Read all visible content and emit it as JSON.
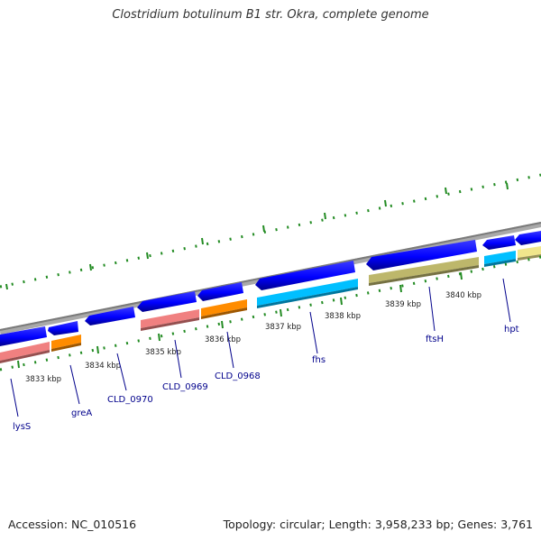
{
  "title": "Clostridium botulinum B1 str. Okra, complete genome",
  "footer": {
    "accession": "Accession: NC_010516",
    "stats": "Topology: circular; Length: 3,958,233 bp; Genes: 3,761"
  },
  "scale": {
    "labels": [
      "3833 kbp",
      "3834 kbp",
      "3835 kbp",
      "3836 kbp",
      "3837 kbp",
      "3838 kbp",
      "3839 kbp",
      "3840 kbp"
    ]
  },
  "genes": [
    {
      "name": "lysS",
      "color": "#f08080"
    },
    {
      "name": "greA",
      "color": "#ff8c00"
    },
    {
      "name": "CLD_0970",
      "color": "#0000ff"
    },
    {
      "name": "CLD_0969",
      "color": "#f08080"
    },
    {
      "name": "CLD_0968",
      "color": "#ff8c00"
    },
    {
      "name": "fhs",
      "color": "#00bfff"
    },
    {
      "name": "ftsH",
      "color": "#bdb76b"
    },
    {
      "name": "hpt",
      "color": "#00bfff"
    }
  ],
  "colors": {
    "backbone": "#808080",
    "cds_arrow": "#0000ff",
    "tick": "#228b22",
    "label": "#00008b",
    "unnamed_gene": "#f0e68c"
  }
}
